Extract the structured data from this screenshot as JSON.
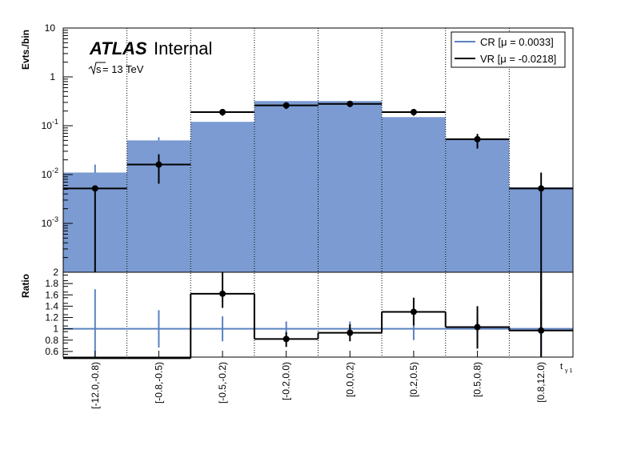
{
  "colors": {
    "cr_fill": "#7b9bd2",
    "cr_line": "#5b82c0",
    "vr": "#000000",
    "grid": "#000000"
  },
  "chart_data": [
    {
      "type": "histogram",
      "panel": "main",
      "ylabel": "Evts./bin",
      "yscale": "log",
      "ylim": [
        0.0001,
        10
      ],
      "y_ticks": [
        {
          "v": 0.001,
          "base": "10",
          "exp": "-3"
        },
        {
          "v": 0.01,
          "base": "10",
          "exp": "-2"
        },
        {
          "v": 0.1,
          "base": "10",
          "exp": "-1"
        },
        {
          "v": 1,
          "base": "1",
          "exp": ""
        },
        {
          "v": 10,
          "base": "10",
          "exp": ""
        }
      ],
      "annotation": {
        "experiment": "ATLAS",
        "status": "Internal",
        "energy_prefix": "s",
        "energy_suffix": " = 13 TeV"
      },
      "categories": [
        "[-12.0,-0.8)",
        "[-0.8,-0.5)",
        "[-0.5,-0.2)",
        "[-0.2,0.0)",
        "[0.0,0.2)",
        "[0.2,0.5)",
        "[0.5,0.8)",
        "[0.8,12.0)"
      ],
      "series": [
        {
          "name": "CR [μ = 0.0033]",
          "style": "filled",
          "values": [
            0.011,
            0.05,
            0.12,
            0.32,
            0.32,
            0.15,
            0.055,
            0.0055
          ],
          "err_up": [
            0.016,
            0.058,
            0,
            0,
            0,
            0,
            0,
            0
          ]
        },
        {
          "name": "VR [μ = -0.0218]",
          "style": "points",
          "values": [
            0.0052,
            0.016,
            0.19,
            0.26,
            0.28,
            0.19,
            0.053,
            0.0052
          ],
          "err_lo": [
            0.0001,
            0.0065,
            0.16,
            0.22,
            0.24,
            0.16,
            0.034,
            0.0001
          ],
          "err_hi": [
            0.0053,
            0.026,
            0.22,
            0.3,
            0.32,
            0.22,
            0.068,
            0.011
          ]
        }
      ],
      "legend": "top-right"
    },
    {
      "type": "ratio",
      "panel": "ratio",
      "ylabel": "Ratio",
      "xlabel": "t",
      "xlabel_sub": "γ 1",
      "ylim": [
        0.5,
        2.0
      ],
      "y_ticks": [
        "0.6",
        "0.8",
        "1",
        "1.2",
        "1.4",
        "1.6",
        "1.8",
        "2"
      ],
      "categories": [
        "[-12.0,-0.8)",
        "[-0.8,-0.5)",
        "[-0.5,-0.2)",
        "[-0.2,0.0)",
        "[0.0,0.2)",
        "[0.2,0.5)",
        "[0.5,0.8)",
        "[0.8,12.0)"
      ],
      "series": [
        {
          "name": "CR",
          "values": [
            1,
            1,
            1,
            1,
            1,
            1,
            1,
            1
          ],
          "err_lo": [
            0.5,
            0.67,
            0.78,
            0.9,
            0.9,
            0.8,
            0.8,
            0.5
          ],
          "err_hi": [
            1.7,
            1.33,
            1.22,
            1.13,
            1.13,
            1.2,
            1.2,
            1.5
          ]
        },
        {
          "name": "VR",
          "values": [
            0.48,
            0.48,
            1.62,
            0.82,
            0.93,
            1.3,
            1.03,
            0.97
          ],
          "err_lo": [
            0.48,
            0.48,
            1.37,
            0.68,
            0.78,
            1.06,
            0.65,
            0.5
          ],
          "err_hi": [
            0.48,
            0.48,
            2.0,
            0.94,
            1.08,
            1.55,
            1.4,
            2.0
          ],
          "markers": [
            false,
            false,
            true,
            true,
            true,
            true,
            true,
            true
          ]
        }
      ]
    }
  ]
}
